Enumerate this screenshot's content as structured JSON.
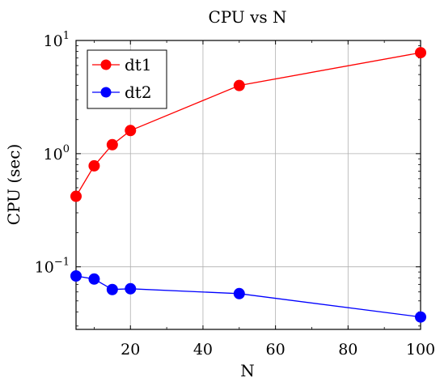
{
  "chart_data": {
    "type": "line",
    "title": "CPU vs N",
    "xlabel": "N",
    "ylabel": "CPU (sec)",
    "x_scale": "linear",
    "y_scale": "log",
    "xlim": [
      5,
      100
    ],
    "ylim": [
      0.028,
      10
    ],
    "grid": true,
    "legend_position": "top-left",
    "x_ticks": [
      20,
      40,
      60,
      80,
      100
    ],
    "y_ticks": [
      {
        "value": 0.1,
        "base": "10",
        "exp": "−1"
      },
      {
        "value": 1,
        "base": "10",
        "exp": "0"
      },
      {
        "value": 10,
        "base": "10",
        "exp": "1"
      }
    ],
    "series": [
      {
        "name": "dt1",
        "color": "#ff0000",
        "x": [
          5,
          10,
          15,
          20,
          50,
          100
        ],
        "y": [
          0.42,
          0.78,
          1.2,
          1.6,
          4.0,
          7.8
        ]
      },
      {
        "name": "dt2",
        "color": "#0000ff",
        "x": [
          5,
          10,
          15,
          20,
          50,
          100
        ],
        "y": [
          0.083,
          0.078,
          0.063,
          0.064,
          0.058,
          0.036
        ]
      }
    ]
  }
}
